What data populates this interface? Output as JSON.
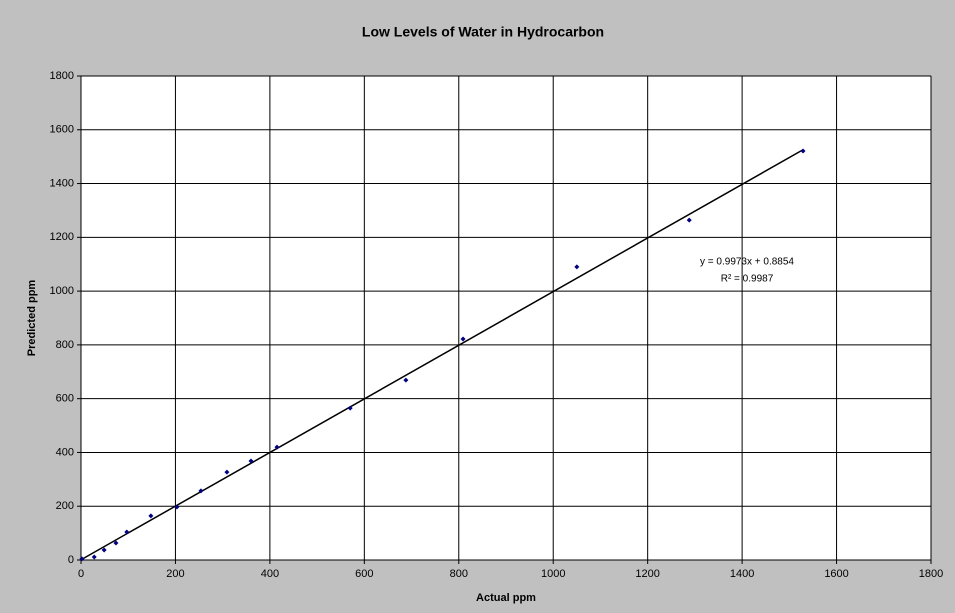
{
  "chart_data": {
    "type": "scatter",
    "title": "Low Levels of Water in Hydrocarbon",
    "xlabel": "Actual  ppm",
    "ylabel": "Predicted  ppm",
    "x": [
      2,
      28,
      49,
      74,
      97,
      148,
      203,
      254,
      309,
      360,
      415,
      570,
      688,
      809,
      1050,
      1288,
      1529
    ],
    "values": [
      4,
      11,
      37,
      63,
      104,
      164,
      197,
      257,
      327,
      368,
      420,
      565,
      669,
      822,
      1090,
      1264,
      1521
    ],
    "color": "#000080",
    "trendline": {
      "slope": 0.9973,
      "intercept": 0.8854,
      "label": "y = 0.9973x + 0.8854",
      "r2": 0.9987,
      "r2_label": "R² = 0.9987"
    },
    "xlim": [
      0,
      1800
    ],
    "xticks": [
      0,
      200,
      400,
      600,
      800,
      1000,
      1200,
      1400,
      1600,
      1800
    ],
    "ylim": [
      0,
      1800
    ],
    "yticks": [
      0,
      200,
      400,
      600,
      800,
      1000,
      1200,
      1400,
      1600,
      1800
    ],
    "grid": true
  }
}
